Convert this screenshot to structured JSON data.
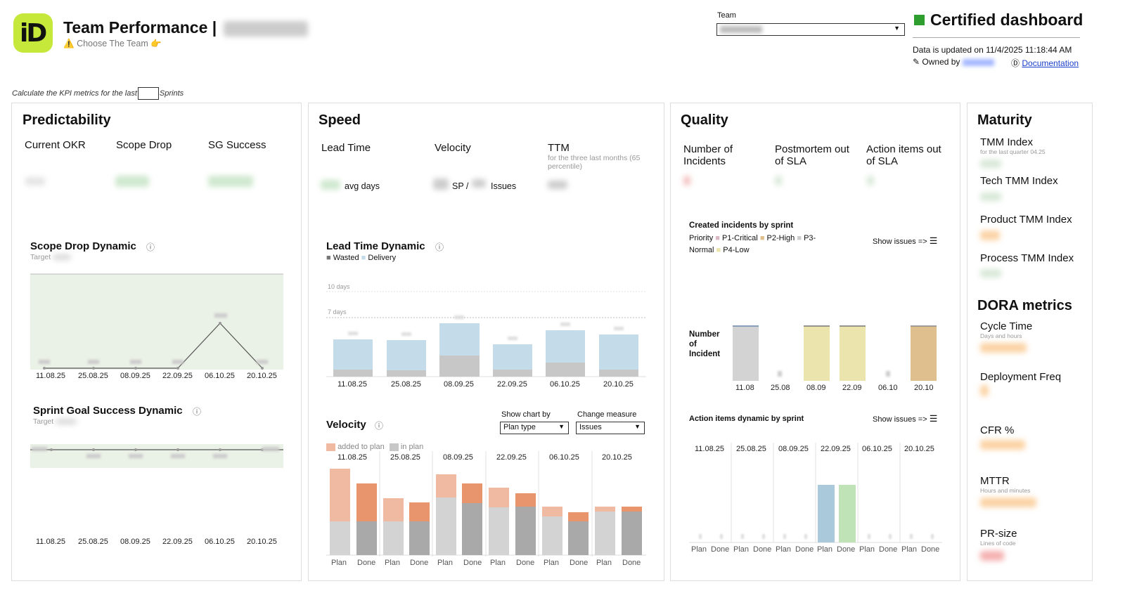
{
  "header": {
    "logo_text": "iD",
    "title": "Team Performance |",
    "subtitle_icon": "⚠️",
    "subtitle": "Choose The Team",
    "subtitle_hand": "👉",
    "team_label": "Team",
    "certified": "Certified dashboard",
    "updated": "Data is updated on 11/4/2025 11:18:44 AM",
    "owned_by": "✎ Owned by",
    "doc_icon": "Ⓓ",
    "documentation": "Documentation"
  },
  "kpi": {
    "prefix": "Calculate the KPI metrics for the last",
    "suffix": "Sprints"
  },
  "predictability": {
    "title": "Predictability",
    "metrics": [
      "Current OKR",
      "Scope Drop",
      "SG Success"
    ],
    "scope_drop_title": "Scope Drop Dynamic",
    "target_label": "Target",
    "sg_title": "Sprint Goal Success Dynamic",
    "dates": [
      "11.08.25",
      "25.08.25",
      "08.09.25",
      "22.09.25",
      "06.10.25",
      "20.10.25"
    ]
  },
  "speed": {
    "title": "Speed",
    "metrics": [
      "Lead Time",
      "Velocity",
      "TTM"
    ],
    "ttm_note": "for the three last months (65 percentile)",
    "avg_days": "avg days",
    "sp": "SP /",
    "issues": "Issues",
    "lead_time_title": "Lead Time Dynamic",
    "legend_wasted": "Wasted",
    "legend_delivery": "Delivery",
    "gridline_10": "10 days",
    "gridline_7": "7 days",
    "lead_dates": [
      "11.08.25",
      "25.08.25",
      "08.09.25",
      "22.09.25",
      "06.10.25",
      "20.10.25"
    ],
    "velocity_title": "Velocity",
    "show_chart_by": "Show chart by",
    "change_measure": "Change measure",
    "plan_type": "Plan type",
    "issues_opt": "Issues",
    "legend_added": "added to plan",
    "legend_inplan": "in plan",
    "vel_dates": [
      "11.08.25",
      "25.08.25",
      "08.09.25",
      "22.09.25",
      "06.10.25",
      "20.10.25"
    ],
    "plan": "Plan",
    "done": "Done"
  },
  "quality": {
    "title": "Quality",
    "metrics": [
      "Number of Incidents",
      "Postmortem out of SLA",
      "Action items out of SLA"
    ],
    "created_title": "Created incidents by sprint",
    "priority_label": "Priority",
    "p1": "P1-Critical",
    "p2": "P2-High",
    "p3": "P3-Normal",
    "p4": "P4-Low",
    "show_issues": "Show issues =>",
    "y_label": "Number of Incident",
    "inc_dates": [
      "11.08",
      "25.08",
      "08.09",
      "22.09",
      "06.10",
      "20.10"
    ],
    "action_title": "Action items dynamic by sprint",
    "act_dates": [
      "11.08.25",
      "25.08.25",
      "08.09.25",
      "22.09.25",
      "06.10.25",
      "20.10.25"
    ],
    "plan": "Plan",
    "done": "Done"
  },
  "maturity": {
    "title": "Maturity",
    "tmm_index": "TMM Index",
    "tmm_note": "for the last quarter 04.25",
    "tech_tmm": "Tech TMM Index",
    "product_tmm": "Product TMM Index",
    "process_tmm": "Process TMM Index",
    "dora_title": "DORA metrics",
    "cycle_time": "Cycle Time",
    "cycle_note": "Days and hours",
    "deploy_freq": "Deployment Freq",
    "cfr": "CFR %",
    "mttr": "MTTR",
    "mttr_note": "Hours and minutes",
    "pr_size": "PR-size",
    "pr_note": "Lines of code"
  },
  "colors": {
    "accent_green": "#2e9e2e",
    "logo_lime": "#c5e83a",
    "delivery_blue": "#c4dbea",
    "wasted_gray": "#c7c7c7",
    "added_orange": "#f0b9a2",
    "done_orange": "#e8946c",
    "p4_yellow": "#ebe5ad",
    "p2_brown": "#dfbf8e"
  }
}
